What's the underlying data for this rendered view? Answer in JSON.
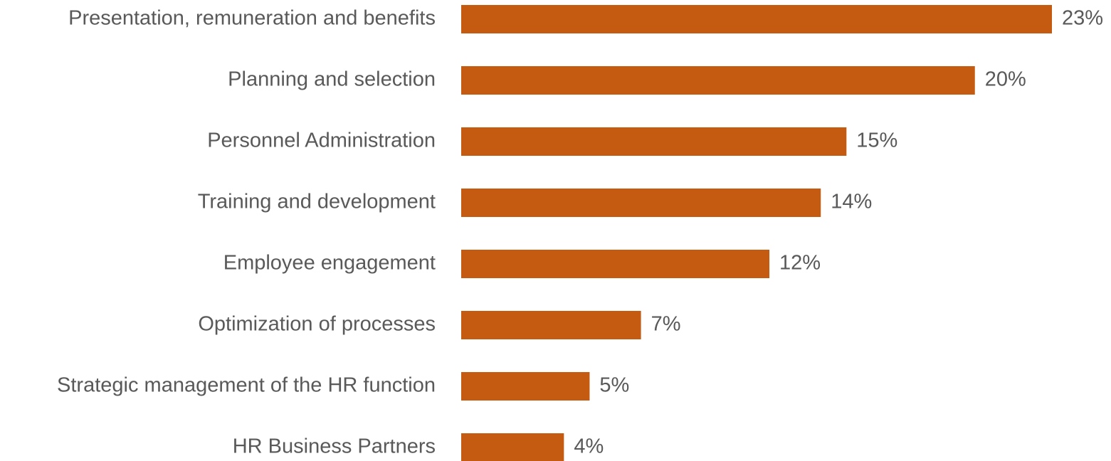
{
  "chart_data": {
    "type": "barh",
    "categories": [
      "Presentation, remuneration and benefits",
      "Planning and selection",
      "Personnel Administration",
      "Training and development",
      "Employee engagement",
      "Optimization of processes",
      "Strategic management of the HR function",
      "HR Business Partners"
    ],
    "values": [
      23,
      20,
      15,
      14,
      12,
      7,
      5,
      4
    ],
    "value_labels": [
      "23%",
      "20%",
      "15%",
      "14%",
      "12%",
      "7%",
      "5%",
      "4%"
    ],
    "color": "#c55a11"
  }
}
